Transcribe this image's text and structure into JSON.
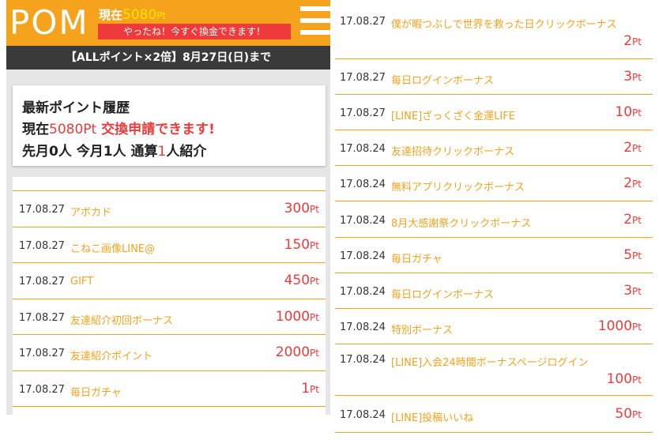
{
  "header": {
    "logo": "POM",
    "current_label": "現在",
    "current_value": "5080",
    "current_unit": "Pt",
    "alert": "やったね！今すぐ換金できます！"
  },
  "banner": "【ALLポイント×2倍】8月27日(日)まで",
  "summary": {
    "title": "最新ポイント履歴",
    "line2_prefix": "現在",
    "line2_value": "5080",
    "line2_unit": "Pt",
    "line2_action": "交換申請できます!",
    "line3_a": "先月0人 今月1人 通算",
    "line3_num": "1",
    "line3_b": "人紹介"
  },
  "left_history": [
    {
      "date": "17.08.27",
      "desc": "アボカド",
      "pts": "300"
    },
    {
      "date": "17.08.27",
      "desc": "こねこ画像LINE@",
      "pts": "150"
    },
    {
      "date": "17.08.27",
      "desc": "GIFT",
      "pts": "450"
    },
    {
      "date": "17.08.27",
      "desc": "友達紹介初回ボーナス",
      "pts": "1000"
    },
    {
      "date": "17.08.27",
      "desc": "友達紹介ポイント",
      "pts": "2000"
    },
    {
      "date": "17.08.27",
      "desc": "毎日ガチャ",
      "pts": "1"
    }
  ],
  "right_history": [
    {
      "date": "17.08.27",
      "desc": "僕が暇つぶしで世界を救った日クリックボーナス",
      "pts": "2"
    },
    {
      "date": "17.08.27",
      "desc": "毎日ログインボーナス",
      "pts": "3"
    },
    {
      "date": "17.08.27",
      "desc": "[LINE]ざっくざく金運LIFE",
      "pts": "10"
    },
    {
      "date": "17.08.24",
      "desc": "友達招待クリックボーナス",
      "pts": "2"
    },
    {
      "date": "17.08.24",
      "desc": "無料アプリクリックボーナス",
      "pts": "2"
    },
    {
      "date": "17.08.24",
      "desc": "8月大感謝祭クリックボーナス",
      "pts": "2"
    },
    {
      "date": "17.08.24",
      "desc": "毎日ガチャ",
      "pts": "5"
    },
    {
      "date": "17.08.24",
      "desc": "毎日ログインボーナス",
      "pts": "3"
    },
    {
      "date": "17.08.24",
      "desc": "特別ボーナス",
      "pts": "1000"
    },
    {
      "date": "17.08.24",
      "desc": "[LINE]入会24時間ボーナスページログイン",
      "pts": "100"
    },
    {
      "date": "17.08.24",
      "desc": "[LINE]投稿いいね",
      "pts": "50"
    }
  ],
  "unit": "Pt",
  "colors": {
    "accent": "#f5a21c",
    "red": "#ee3a3a",
    "banner": "#3a3a3a",
    "highlight": "#ffe400"
  }
}
